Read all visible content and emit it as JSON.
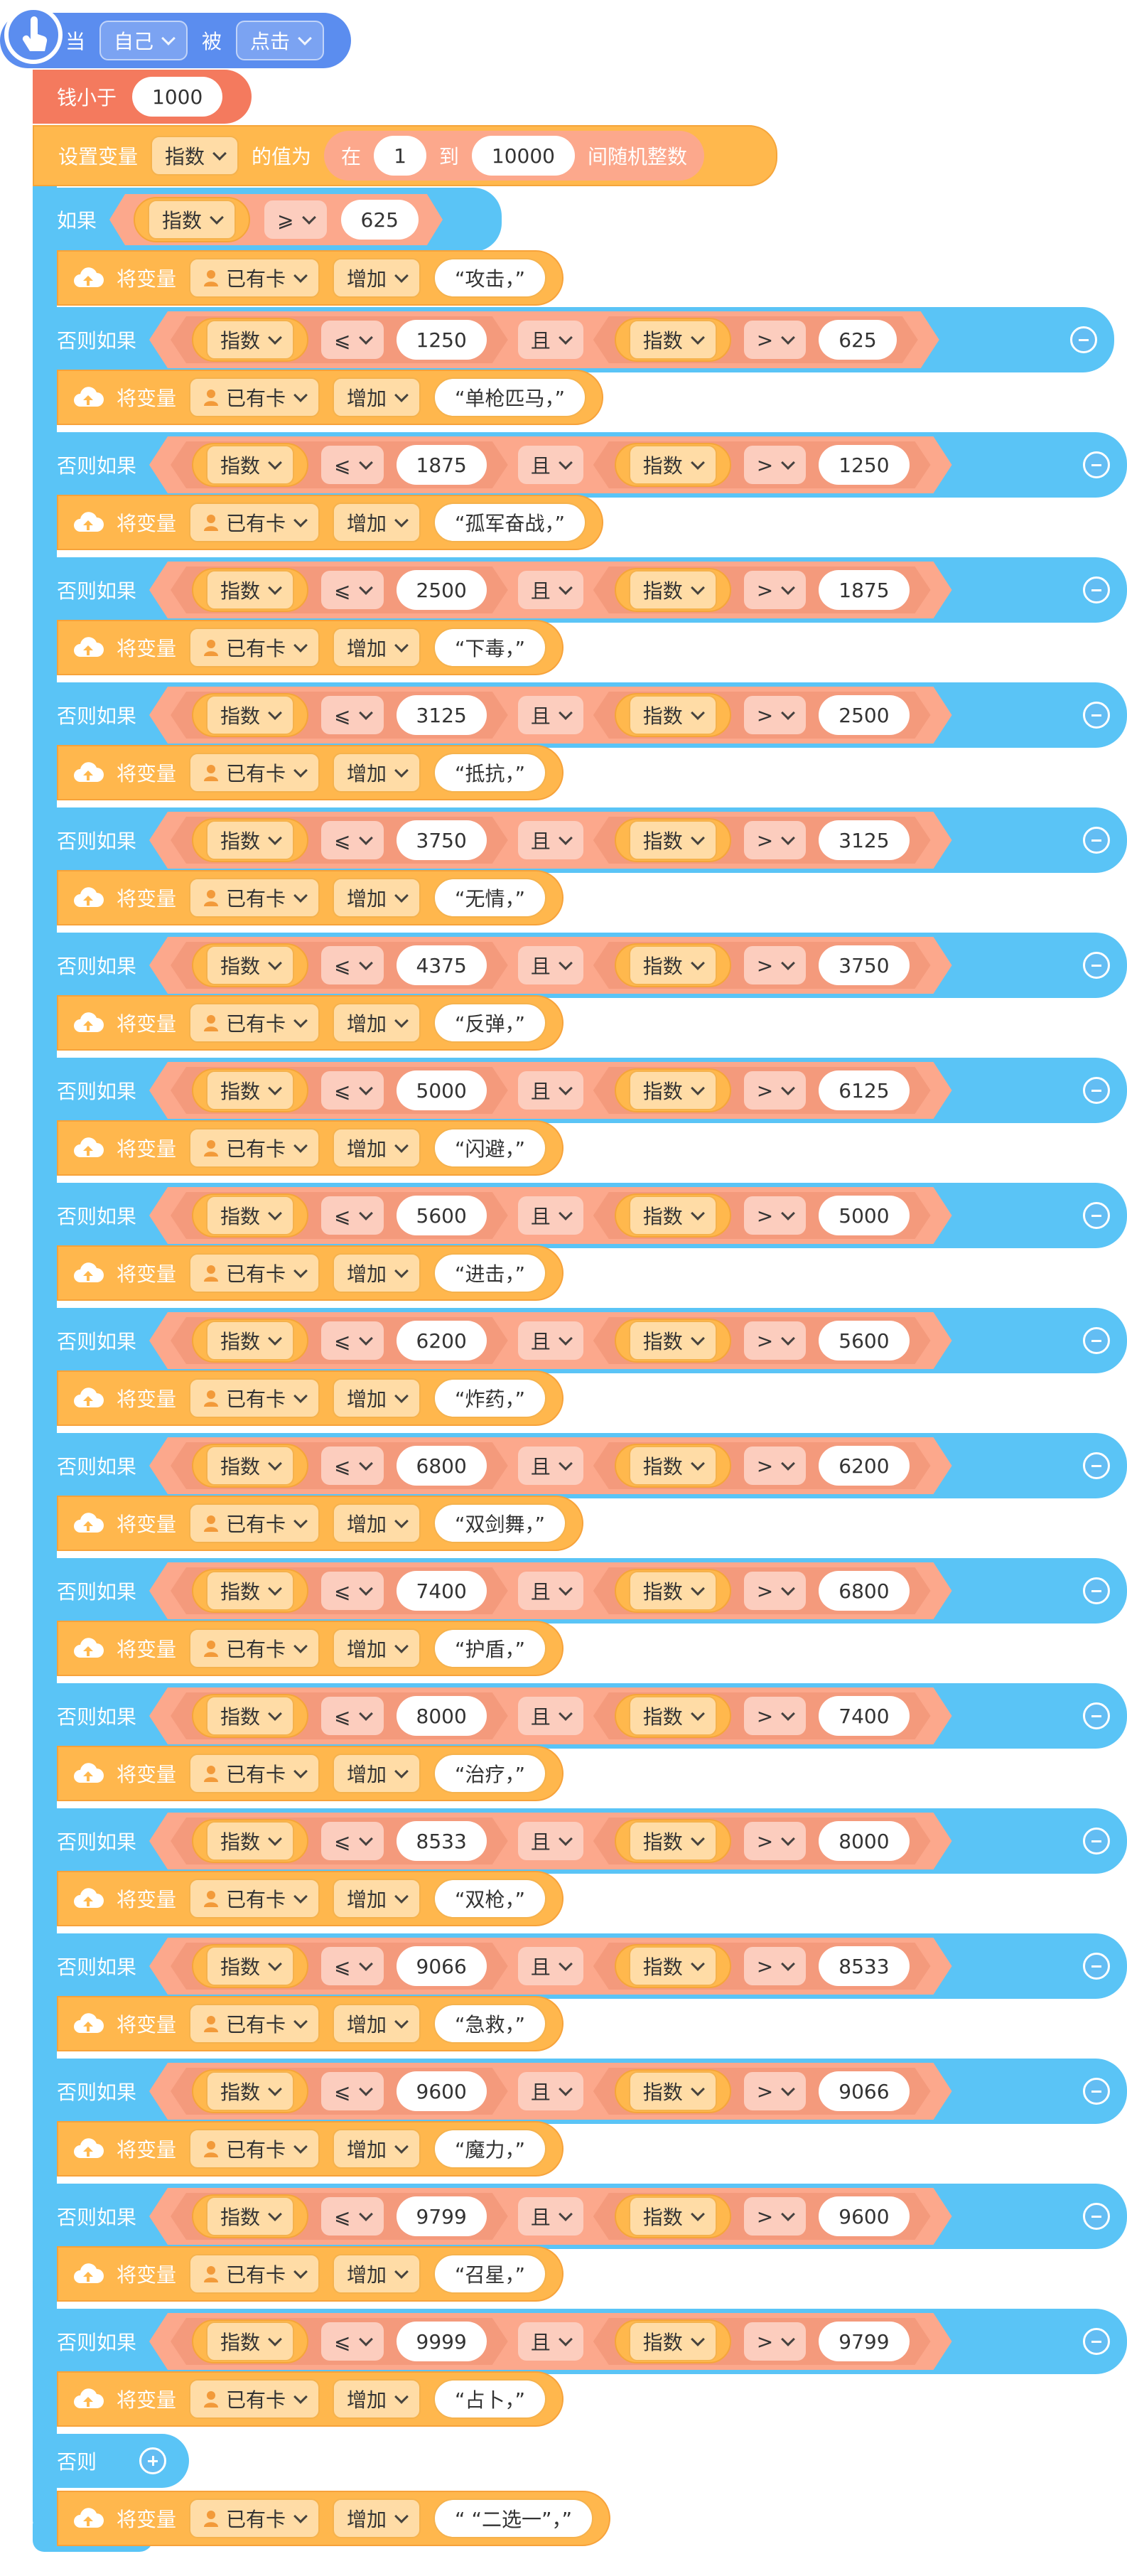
{
  "header": {
    "when": "当",
    "target": "自己",
    "connector": "被",
    "event": "点击"
  },
  "money_check": {
    "label": "钱小于",
    "value": "1000"
  },
  "set_variable": {
    "label": "设置变量",
    "variable": "指数",
    "value_label": "的值为",
    "random_prefix": "在",
    "random_from": "1",
    "random_to_label": "到",
    "random_to": "10000",
    "random_suffix": "间随机整数"
  },
  "if_block": {
    "label": "如果",
    "variable": "指数",
    "operator": "⩾",
    "value": "625"
  },
  "action_labels": {
    "set": "将变量",
    "variable": "已有卡",
    "op": "增加"
  },
  "elseif_label": "否则如果",
  "and_label": "且",
  "cond_var": "指数",
  "op_le": "⩽",
  "op_gt": ">",
  "first_action": "“攻击，”",
  "branches": [
    {
      "le": "1250",
      "gt": "625",
      "action": "“单枪匹马，”"
    },
    {
      "le": "1875",
      "gt": "1250",
      "action": "“孤军奋战，”"
    },
    {
      "le": "2500",
      "gt": "1875",
      "action": "“下毒，”"
    },
    {
      "le": "3125",
      "gt": "2500",
      "action": "“抵抗，”"
    },
    {
      "le": "3750",
      "gt": "3125",
      "action": "“无情，”"
    },
    {
      "le": "4375",
      "gt": "3750",
      "action": "“反弹，”"
    },
    {
      "le": "5000",
      "gt": "6125",
      "action": "“闪避，”"
    },
    {
      "le": "5600",
      "gt": "5000",
      "action": "“进击，”"
    },
    {
      "le": "6200",
      "gt": "5600",
      "action": "“炸药，”"
    },
    {
      "le": "6800",
      "gt": "6200",
      "action": "“双剑舞，”"
    },
    {
      "le": "7400",
      "gt": "6800",
      "action": "“护盾，”"
    },
    {
      "le": "8000",
      "gt": "7400",
      "action": "“治疗，”"
    },
    {
      "le": "8533",
      "gt": "8000",
      "action": "“双枪，”"
    },
    {
      "le": "9066",
      "gt": "8533",
      "action": "“急救，”"
    },
    {
      "le": "9600",
      "gt": "9066",
      "action": "“魔力，”"
    },
    {
      "le": "9799",
      "gt": "9600",
      "action": "“召星，”"
    },
    {
      "le": "9999",
      "gt": "9799",
      "action": "“占卜，”"
    }
  ],
  "else_block": {
    "label": "否则",
    "action": "“ “二选一”，”"
  },
  "colors": {
    "event": "#5b8def",
    "money": "#f47a5e",
    "variable": "#ffb84d",
    "control": "#5ac4f6",
    "operator": "#fca88c",
    "value_bg": "#ffffff"
  }
}
